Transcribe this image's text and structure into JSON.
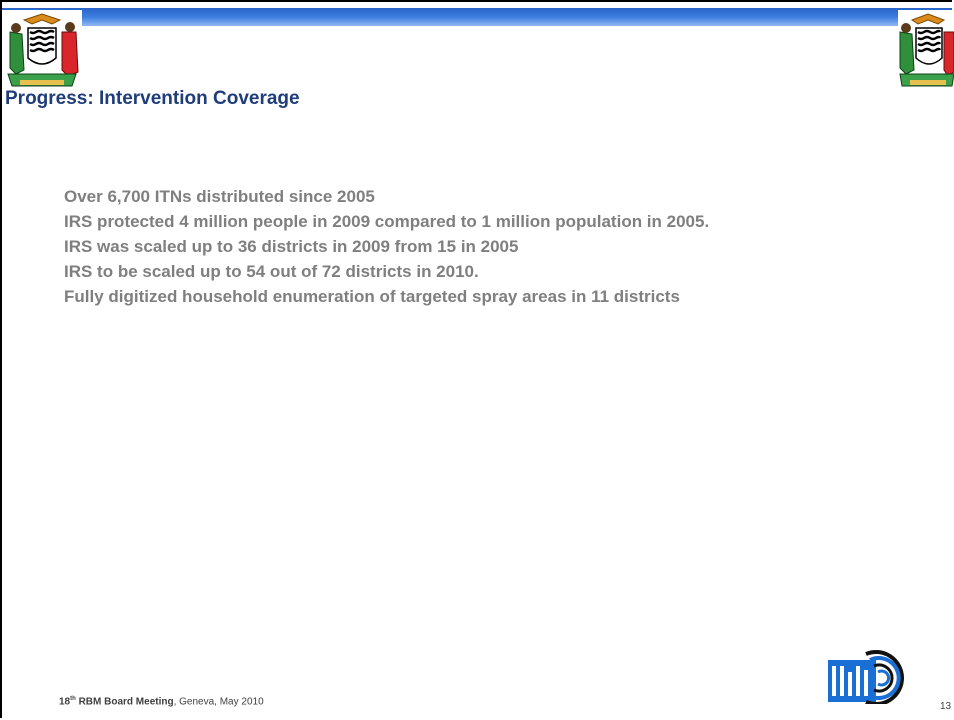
{
  "slide": {
    "title": "Progress: Intervention Coverage",
    "bullets": [
      "Over 6,700 ITNs distributed since 2005",
      "IRS protected 4 million people in 2009 compared to 1 million population in 2005.",
      "IRS was scaled up to 36 districts in 2009 from 15  in 2005",
      "IRS  to be scaled up to 54 out of 72 districts in 2010.",
      "Fully digitized household enumeration of targeted spray areas in 11 districts"
    ],
    "footer": {
      "number": "18",
      "suffix": "th",
      "meeting": " RBM Board Meeting",
      "location": ", Geneva, May 2010"
    },
    "page_number": "13",
    "colors": {
      "accent_bar": "#3d7ee0",
      "title": "#1f3d7a",
      "body_text": "#7f7f7f"
    },
    "icons": {
      "left_emblem": "coat-of-arms-icon",
      "right_emblem": "coat-of-arms-icon",
      "logo": "rbm-logo-icon"
    }
  }
}
